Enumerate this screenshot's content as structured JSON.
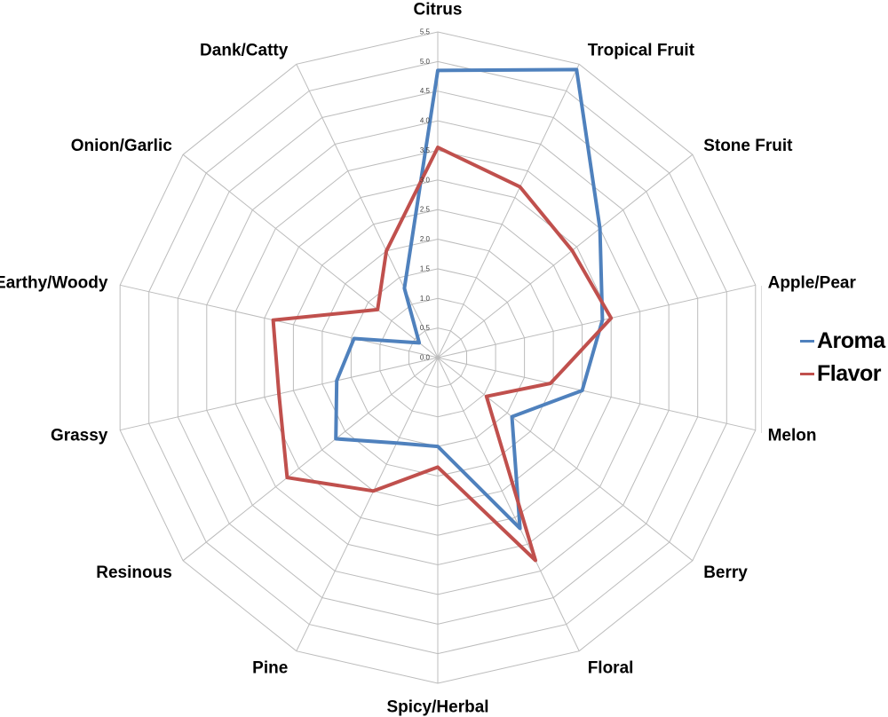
{
  "chart_data": {
    "type": "radar",
    "title": "",
    "categories": [
      "Citrus",
      "Tropical Fruit",
      "Stone Fruit",
      "Apple/Pear",
      "Melon",
      "Berry",
      "Floral",
      "Spicy/Herbal",
      "Pine",
      "Resinous",
      "Grassy",
      "Earthy/Woody",
      "Onion/Garlic",
      "Dank/Catty"
    ],
    "series": [
      {
        "name": "Aroma",
        "color": "#4F81BD",
        "values": [
          4.85,
          5.4,
          3.5,
          2.85,
          2.5,
          1.6,
          3.2,
          1.5,
          1.6,
          2.2,
          1.75,
          1.45,
          0.4,
          1.3
        ]
      },
      {
        "name": "Flavor",
        "color": "#C0504D",
        "values": [
          3.55,
          3.2,
          2.9,
          3.0,
          1.95,
          1.05,
          3.8,
          1.85,
          2.5,
          3.25,
          2.75,
          2.85,
          1.3,
          2.0
        ]
      }
    ],
    "r_axis": {
      "min": 0.0,
      "max": 5.5,
      "step": 0.5,
      "tick_labels": [
        "0.0",
        "0.5",
        "1.0",
        "1.5",
        "2.0",
        "2.5",
        "3.0",
        "3.5",
        "4.0",
        "4.5",
        "5.0",
        "5.5"
      ]
    },
    "grid": true,
    "legend_position": "right"
  },
  "legend": {
    "items": [
      {
        "label": "Aroma",
        "color": "#4F81BD"
      },
      {
        "label": "Flavor",
        "color": "#C0504D"
      }
    ]
  },
  "colors": {
    "background": "#ffffff",
    "grid_line": "#bcbcbc",
    "category_label_text": "#000000",
    "tick_label_text": "#404040"
  }
}
